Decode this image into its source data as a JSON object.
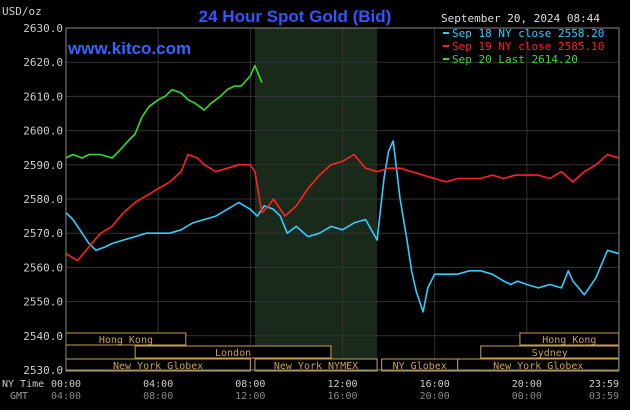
{
  "header": {
    "title": "24 Hour Spot Gold (Bid)",
    "unit_label": "USD/oz",
    "site": "www.kitco.com",
    "date": "September 20, 2024 08:44"
  },
  "legend": [
    {
      "text": "Sep 18 NY close 2558.20",
      "color": "#33ccff"
    },
    {
      "text": "Sep 19 NY close 2585.10",
      "color": "#ff2222"
    },
    {
      "text": "Sep 20 Last 2614.20",
      "color": "#33dd33"
    }
  ],
  "axis": {
    "row1_label": "NY Time",
    "row2_label": "GMT",
    "ny_ticks": [
      "00:00",
      "04:00",
      "08:00",
      "12:00",
      "16:00",
      "20:00",
      "23:59"
    ],
    "gmt_ticks": [
      "04:00",
      "08:00",
      "12:00",
      "16:00",
      "20:00",
      "00:00",
      "03:59"
    ],
    "y_ticks": [
      "2630.0",
      "2620.0",
      "2610.0",
      "2600.0",
      "2590.0",
      "2580.0",
      "2570.0",
      "2560.0",
      "2550.0",
      "2540.0",
      "2530.0"
    ]
  },
  "sessions": {
    "upper": [
      {
        "label": "Hong Kong",
        "start": 0.0,
        "end": 5.2
      },
      {
        "label": "Hong Kong",
        "start": 19.7,
        "end": 23.99
      }
    ],
    "middle": [
      {
        "label": "London",
        "start": 3.0,
        "end": 11.5
      },
      {
        "label": "Sydney",
        "start": 18.0,
        "end": 23.99
      }
    ],
    "lower": [
      {
        "label": "New York Globex",
        "start": 0.0,
        "end": 8.0
      },
      {
        "label": "New York NYMEX",
        "start": 8.2,
        "end": 13.5
      },
      {
        "label": "NY Globex",
        "start": 13.7,
        "end": 17.0
      },
      {
        "label": "New York Globex",
        "start": 17.0,
        "end": 23.99
      }
    ]
  },
  "colors": {
    "background": "#000000",
    "grid": "#333333",
    "highlight": "#1a2a1a",
    "title": "#3355ff",
    "site": "#3366ff",
    "axis_text": "#cccccc",
    "session_box": "#c8a050"
  },
  "chart_data": {
    "type": "line",
    "title": "24 Hour Spot Gold (Bid)",
    "ylabel": "USD/oz",
    "x_unit": "hours (NY time)",
    "xlim": [
      0,
      24
    ],
    "ylim": [
      2530,
      2630
    ],
    "grid": true,
    "highlight_range": [
      8.2,
      13.5
    ],
    "legend_position": "top-right",
    "series": [
      {
        "name": "Sep 18 NY close 2558.20",
        "color": "#33ccff",
        "x": [
          0,
          0.3,
          0.7,
          1.0,
          1.3,
          1.7,
          2.0,
          2.5,
          3.0,
          3.5,
          4.0,
          4.5,
          5.0,
          5.5,
          6.0,
          6.5,
          7.0,
          7.5,
          8.0,
          8.3,
          8.6,
          9.0,
          9.3,
          9.6,
          10.0,
          10.5,
          11.0,
          11.5,
          12.0,
          12.5,
          13.0,
          13.5,
          13.8,
          14.0,
          14.2,
          14.5,
          14.8,
          15.0,
          15.2,
          15.5,
          15.7,
          16.0,
          16.5,
          17.0,
          17.5,
          18.0,
          18.5,
          19.0,
          19.3,
          19.6,
          20.0,
          20.5,
          21.0,
          21.5,
          21.8,
          22.0,
          22.5,
          23.0,
          23.5,
          24.0
        ],
        "y": [
          2576,
          2574,
          2570,
          2567,
          2565,
          2566,
          2567,
          2568,
          2569,
          2570,
          2570,
          2570,
          2571,
          2573,
          2574,
          2575,
          2577,
          2579,
          2577,
          2575,
          2578,
          2577,
          2575,
          2570,
          2572,
          2569,
          2570,
          2572,
          2571,
          2573,
          2574,
          2568,
          2586,
          2594,
          2597,
          2580,
          2568,
          2559,
          2553,
          2547,
          2554,
          2558,
          2558,
          2558,
          2559,
          2559,
          2558,
          2556,
          2555,
          2556,
          2555,
          2554,
          2555,
          2554,
          2559,
          2556,
          2552,
          2557,
          2565,
          2564
        ]
      },
      {
        "name": "Sep 19 NY close 2585.10",
        "color": "#ff2222",
        "x": [
          0,
          0.5,
          1.0,
          1.5,
          2.0,
          2.5,
          3.0,
          3.5,
          4.0,
          4.5,
          5.0,
          5.3,
          5.7,
          6.0,
          6.5,
          7.0,
          7.5,
          8.0,
          8.2,
          8.5,
          8.8,
          9.0,
          9.5,
          10.0,
          10.5,
          11.0,
          11.5,
          12.0,
          12.5,
          13.0,
          13.5,
          14.0,
          14.5,
          15.0,
          15.5,
          16.0,
          16.5,
          17.0,
          17.5,
          18.0,
          18.5,
          19.0,
          19.5,
          20.0,
          20.5,
          21.0,
          21.5,
          22.0,
          22.5,
          23.0,
          23.5,
          24.0
        ],
        "y": [
          2564,
          2562,
          2566,
          2570,
          2572,
          2576,
          2579,
          2581,
          2583,
          2585,
          2588,
          2593,
          2592,
          2590,
          2588,
          2589,
          2590,
          2590,
          2588,
          2576,
          2578,
          2580,
          2575,
          2578,
          2583,
          2587,
          2590,
          2591,
          2593,
          2589,
          2588,
          2589,
          2589,
          2588,
          2587,
          2586,
          2585,
          2586,
          2586,
          2586,
          2587,
          2586,
          2587,
          2587,
          2587,
          2586,
          2588,
          2585,
          2588,
          2590,
          2593,
          2592
        ]
      },
      {
        "name": "Sep 20 Last 2614.20",
        "color": "#33dd33",
        "x": [
          0,
          0.3,
          0.7,
          1.0,
          1.5,
          2.0,
          2.3,
          2.7,
          3.0,
          3.3,
          3.6,
          4.0,
          4.3,
          4.6,
          5.0,
          5.3,
          5.6,
          6.0,
          6.3,
          6.7,
          7.0,
          7.3,
          7.6,
          8.0,
          8.2,
          8.5
        ],
        "y": [
          2592,
          2593,
          2592,
          2593,
          2593,
          2592,
          2594,
          2597,
          2599,
          2604,
          2607,
          2609,
          2610,
          2612,
          2611,
          2609,
          2608,
          2606,
          2608,
          2610,
          2612,
          2613,
          2613,
          2616,
          2619,
          2614
        ]
      }
    ]
  }
}
